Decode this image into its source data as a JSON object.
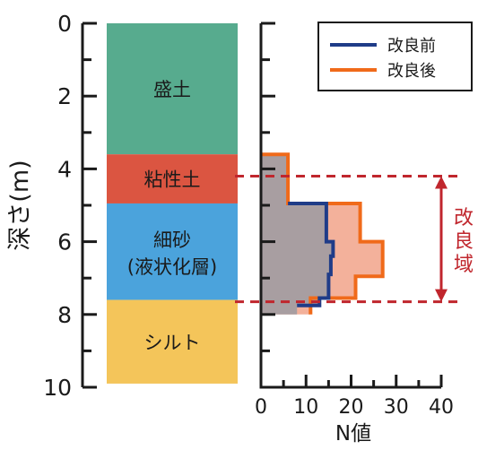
{
  "depth_axis": {
    "label": "深さ(m)",
    "ticks": [
      "0",
      "2",
      "4",
      "6",
      "8",
      "10"
    ],
    "range": [
      0,
      10
    ]
  },
  "layers": [
    {
      "label": "盛土",
      "top": 0,
      "bottom": 3.6,
      "color": "#57ab8e"
    },
    {
      "label": "粘性土",
      "top": 3.6,
      "bottom": 4.95,
      "color": "#db5541"
    },
    {
      "label": "細砂",
      "label2": "(液状化層)",
      "top": 4.95,
      "bottom": 7.6,
      "color": "#4ba3dc"
    },
    {
      "label": "シルト",
      "top": 7.6,
      "bottom": 9.9,
      "color": "#f4c55a"
    }
  ],
  "n_axis": {
    "label": "N値",
    "ticks": [
      "0",
      "10",
      "20",
      "30",
      "40"
    ],
    "range": [
      0,
      40
    ]
  },
  "legend": {
    "before_label": "改良前",
    "after_label": "改良後"
  },
  "improved_zone": {
    "label_chars": [
      "改",
      "良",
      "域"
    ],
    "top": 4.2,
    "bottom": 7.65
  },
  "colors": {
    "before_line": "#1f3c88",
    "after_line": "#f06a1a",
    "after_fill": "#f3b19b",
    "before_fill": "#a89ea1",
    "zone_line": "#c0262d",
    "axis": "#1a1a1a"
  },
  "chart_data": {
    "type": "line",
    "x_label": "N値",
    "y_label": "深さ(m)",
    "xlim": [
      0,
      40
    ],
    "ylim": [
      10,
      0
    ],
    "series": [
      {
        "name": "改良前",
        "points": [
          [
            0,
            3.6
          ],
          [
            6,
            3.6
          ],
          [
            6,
            4.95
          ],
          [
            14.5,
            4.95
          ],
          [
            14.5,
            6.0
          ],
          [
            16,
            6.0
          ],
          [
            16,
            6.4
          ],
          [
            15.5,
            6.4
          ],
          [
            15.5,
            6.9
          ],
          [
            15,
            6.9
          ],
          [
            15,
            7.55
          ],
          [
            13,
            7.55
          ],
          [
            13,
            7.75
          ],
          [
            8,
            7.75
          ],
          [
            8,
            8.0
          ],
          [
            0,
            8.0
          ]
        ]
      },
      {
        "name": "改良後",
        "points": [
          [
            0,
            3.6
          ],
          [
            6,
            3.6
          ],
          [
            6,
            4.95
          ],
          [
            22,
            4.95
          ],
          [
            22,
            6.0
          ],
          [
            27,
            6.0
          ],
          [
            27,
            6.95
          ],
          [
            21,
            6.95
          ],
          [
            21,
            7.55
          ],
          [
            11,
            7.55
          ],
          [
            11,
            8.0
          ]
        ]
      }
    ]
  }
}
